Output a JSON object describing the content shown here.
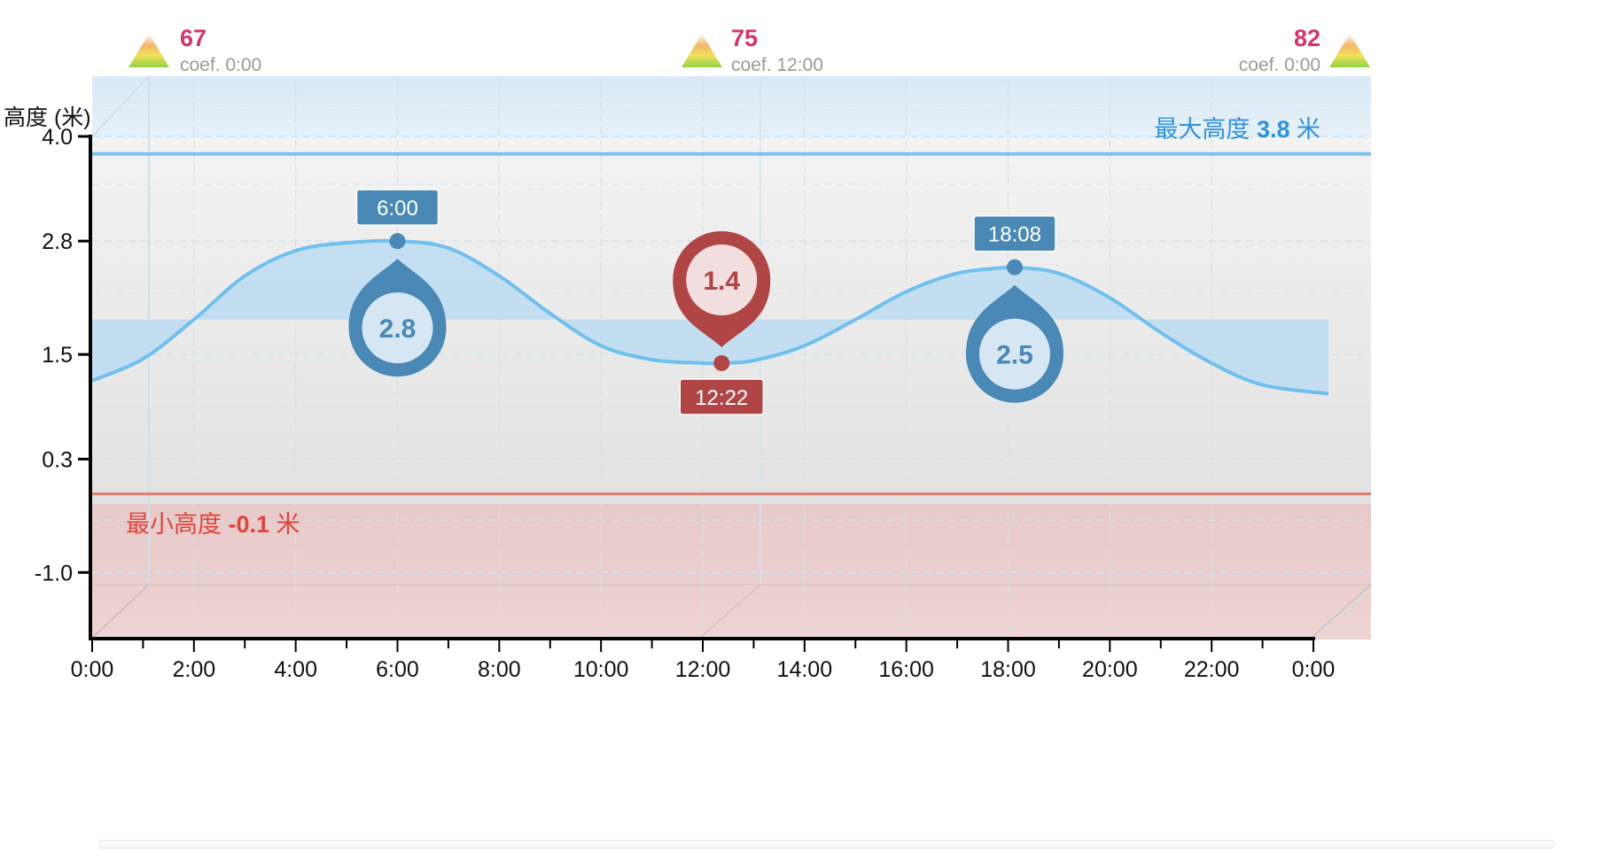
{
  "chart_data": {
    "type": "area",
    "ylabel": "高度 (米)",
    "yticks": [
      "4.0",
      "2.8",
      "1.5",
      "0.3",
      "-1.0"
    ],
    "ytick_values": [
      4.0,
      2.8,
      1.5,
      0.3,
      -1.0
    ],
    "ylim": [
      -1.6,
      4.0
    ],
    "xticks": [
      "0:00",
      "2:00",
      "4:00",
      "6:00",
      "8:00",
      "10:00",
      "12:00",
      "14:00",
      "16:00",
      "18:00",
      "20:00",
      "22:00",
      "0:00"
    ],
    "xlim_hours": [
      0,
      24
    ],
    "series": [
      {
        "x_hours": [
          0,
          1,
          2,
          3,
          4,
          5,
          6,
          7,
          8,
          9,
          10,
          11,
          12,
          12.37,
          13,
          14,
          15,
          16,
          17,
          18,
          18.13,
          19,
          20,
          21,
          22,
          23,
          24
        ],
        "values": [
          1.2,
          1.45,
          1.9,
          2.4,
          2.69,
          2.78,
          2.8,
          2.72,
          2.4,
          1.97,
          1.6,
          1.44,
          1.4,
          1.4,
          1.43,
          1.6,
          1.9,
          2.22,
          2.43,
          2.5,
          2.5,
          2.43,
          2.15,
          1.75,
          1.4,
          1.15,
          1.05
        ]
      }
    ],
    "extremes": [
      {
        "kind": "high",
        "time": "6:00",
        "x_hours": 6.0,
        "value_label": "2.8",
        "value": 2.8
      },
      {
        "kind": "low",
        "time": "12:22",
        "x_hours": 12.37,
        "value_label": "1.4",
        "value": 1.4
      },
      {
        "kind": "high",
        "time": "18:08",
        "x_hours": 18.13,
        "value_label": "2.5",
        "value": 2.5
      }
    ],
    "max_line": {
      "prefix": "最大高度 ",
      "value": "3.8",
      "suffix": " 米",
      "y": 3.8,
      "color": "#2f92db"
    },
    "min_line": {
      "prefix": "最小高度 ",
      "value": "-0.1",
      "suffix": " 米",
      "y": -0.1,
      "color": "#e3443a"
    },
    "coefficients": [
      {
        "value": "67",
        "label": "coef. 0:00"
      },
      {
        "value": "75",
        "label": "coef. 12:00"
      },
      {
        "value": "82",
        "label": "coef. 0:00"
      }
    ],
    "grid": true,
    "colors": {
      "high_marker": "#4a88b5",
      "low_marker": "#b04545",
      "curve": "#6fc0ee",
      "fill": "#bcdcf2",
      "coef_value": "#d6336c",
      "coef_label": "#999999"
    }
  }
}
